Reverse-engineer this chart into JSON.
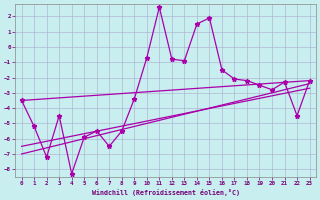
{
  "xlabel": "Windchill (Refroidissement éolien,°C)",
  "background_color": "#c8eef0",
  "grid_color": "#aaaacc",
  "line_color": "#aa00aa",
  "xlim_min": -0.5,
  "xlim_max": 23.5,
  "ylim_min": -8.5,
  "ylim_max": 2.8,
  "xticks": [
    0,
    1,
    2,
    3,
    4,
    5,
    6,
    7,
    8,
    9,
    10,
    11,
    12,
    13,
    14,
    15,
    16,
    17,
    18,
    19,
    20,
    21,
    22,
    23
  ],
  "yticks": [
    -8,
    -7,
    -6,
    -5,
    -4,
    -3,
    -2,
    -1,
    0,
    1,
    2
  ],
  "main_x": [
    0,
    1,
    2,
    3,
    4,
    5,
    6,
    7,
    8,
    9,
    10,
    11,
    12,
    13,
    14,
    15,
    16,
    17,
    18,
    19,
    20,
    21,
    22,
    23
  ],
  "main_y": [
    -3.5,
    -5.2,
    -7.2,
    -4.5,
    -8.3,
    -5.9,
    -5.5,
    -6.5,
    -5.5,
    -3.4,
    -0.7,
    2.6,
    -0.8,
    -0.9,
    1.5,
    1.9,
    -1.5,
    -2.1,
    -2.2,
    -2.5,
    -2.8,
    -2.3,
    -4.5,
    -2.2
  ],
  "trend1_x": [
    0,
    23
  ],
  "trend1_y": [
    -3.5,
    -2.2
  ],
  "trend2_x": [
    0,
    23
  ],
  "trend2_y": [
    -6.5,
    -2.7
  ],
  "trend3_x": [
    0,
    23
  ],
  "trend3_y": [
    -7.0,
    -2.4
  ]
}
